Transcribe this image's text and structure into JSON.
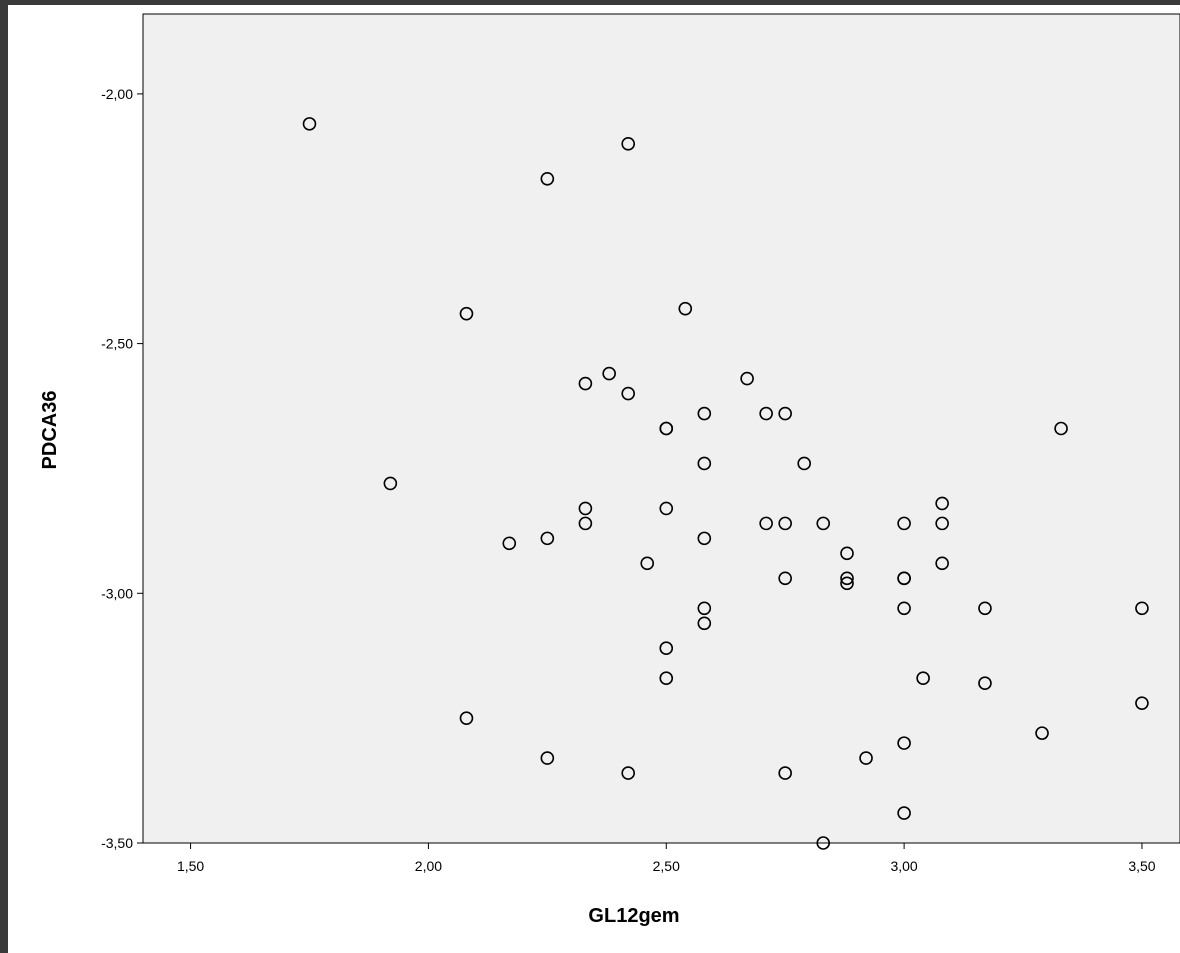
{
  "colors": {
    "plot_background": "#f0f0f0",
    "marker_stroke": "#000000",
    "outer_background": "#3a3a3a"
  },
  "chart_data": {
    "type": "scatter",
    "title": "",
    "xlabel": "GL12gem",
    "ylabel": "PDCA36",
    "xlim": [
      1.4,
      3.58
    ],
    "ylim": [
      -3.5,
      -1.84
    ],
    "x_ticks": [
      1.5,
      2.0,
      2.5,
      3.0,
      3.5
    ],
    "x_tick_labels": [
      "1,50",
      "2,00",
      "2,50",
      "3,00",
      "3,50"
    ],
    "y_ticks": [
      -2.0,
      -2.5,
      -3.0,
      -3.5
    ],
    "y_tick_labels": [
      "-2,00",
      "-2,50",
      "-3,00",
      "-3,50"
    ],
    "grid": false,
    "marker": "open-circle",
    "series": [
      {
        "points": [
          [
            1.75,
            -2.06
          ],
          [
            2.42,
            -2.1
          ],
          [
            2.25,
            -2.17
          ],
          [
            2.08,
            -2.44
          ],
          [
            2.54,
            -2.43
          ],
          [
            2.38,
            -2.56
          ],
          [
            2.33,
            -2.58
          ],
          [
            2.42,
            -2.6
          ],
          [
            2.67,
            -2.57
          ],
          [
            2.58,
            -2.64
          ],
          [
            2.71,
            -2.64
          ],
          [
            2.75,
            -2.64
          ],
          [
            2.5,
            -2.67
          ],
          [
            2.5,
            -2.67
          ],
          [
            3.33,
            -2.67
          ],
          [
            2.58,
            -2.74
          ],
          [
            2.79,
            -2.74
          ],
          [
            1.92,
            -2.78
          ],
          [
            3.08,
            -2.82
          ],
          [
            2.33,
            -2.83
          ],
          [
            2.5,
            -2.83
          ],
          [
            2.33,
            -2.86
          ],
          [
            2.71,
            -2.86
          ],
          [
            2.75,
            -2.86
          ],
          [
            2.83,
            -2.86
          ],
          [
            3.0,
            -2.86
          ],
          [
            3.08,
            -2.86
          ],
          [
            2.25,
            -2.89
          ],
          [
            2.58,
            -2.89
          ],
          [
            2.17,
            -2.9
          ],
          [
            2.88,
            -2.92
          ],
          [
            2.46,
            -2.94
          ],
          [
            3.08,
            -2.94
          ],
          [
            2.75,
            -2.97
          ],
          [
            2.88,
            -2.97
          ],
          [
            3.0,
            -2.97
          ],
          [
            3.0,
            -2.97
          ],
          [
            2.88,
            -2.98
          ],
          [
            2.58,
            -3.03
          ],
          [
            3.0,
            -3.03
          ],
          [
            3.17,
            -3.03
          ],
          [
            3.5,
            -3.03
          ],
          [
            2.58,
            -3.06
          ],
          [
            2.5,
            -3.11
          ],
          [
            2.5,
            -3.17
          ],
          [
            3.04,
            -3.17
          ],
          [
            3.17,
            -3.18
          ],
          [
            3.5,
            -3.22
          ],
          [
            2.08,
            -3.25
          ],
          [
            3.29,
            -3.28
          ],
          [
            3.0,
            -3.3
          ],
          [
            2.25,
            -3.33
          ],
          [
            2.92,
            -3.33
          ],
          [
            2.42,
            -3.36
          ],
          [
            2.75,
            -3.36
          ],
          [
            3.0,
            -3.44
          ],
          [
            2.83,
            -3.5
          ]
        ]
      }
    ]
  }
}
